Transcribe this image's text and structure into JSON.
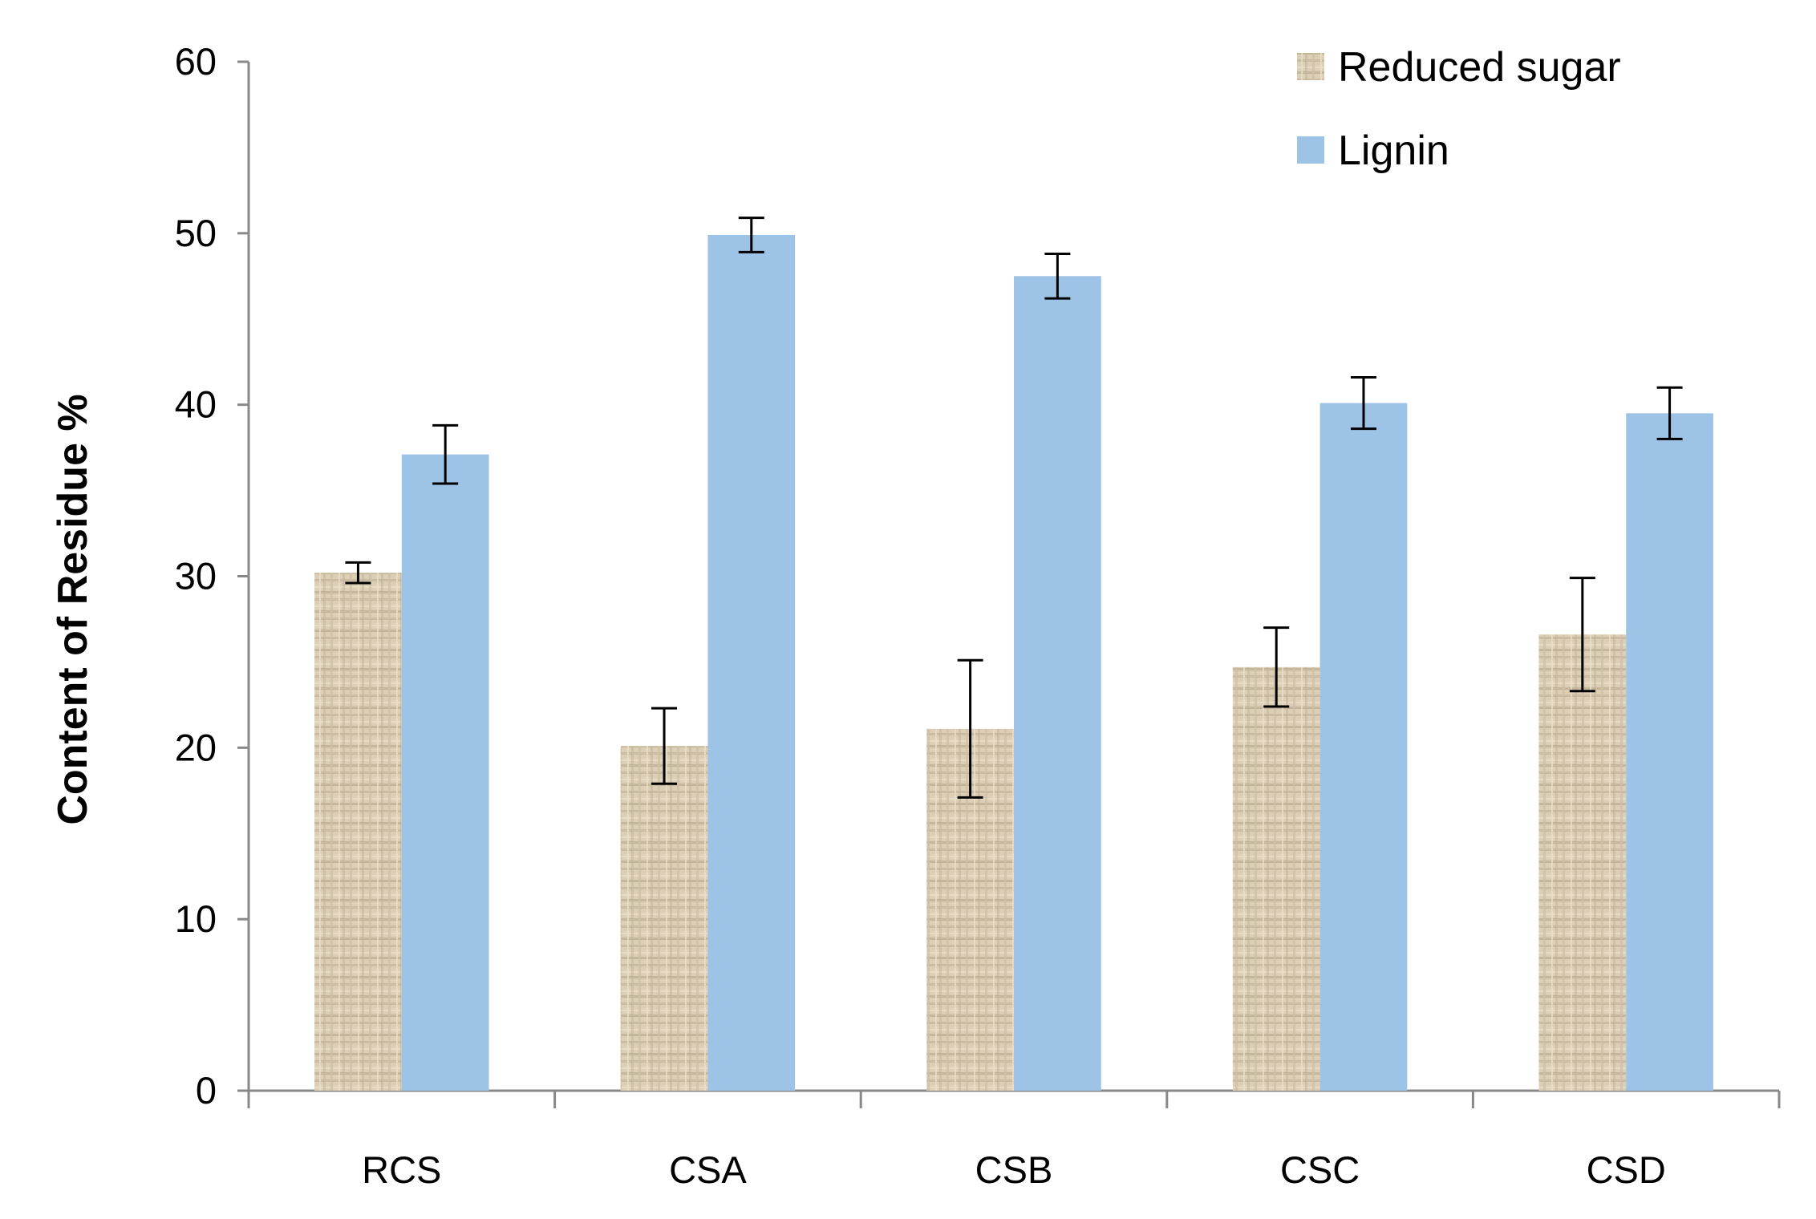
{
  "chart_data": {
    "type": "bar",
    "title": "",
    "xlabel": "",
    "ylabel": "Content of Residue  %",
    "categories": [
      "RCS",
      "CSA",
      "CSB",
      "CSC",
      "CSD"
    ],
    "ylim": [
      0,
      60
    ],
    "yticks": [
      0,
      10,
      20,
      30,
      40,
      50,
      60
    ],
    "grid": false,
    "legend_position": "top-right",
    "series": [
      {
        "name": "Reduced sugar",
        "color": "#d8ccb2",
        "pattern": "woven-texture",
        "values": [
          30.2,
          20.1,
          21.1,
          24.7,
          26.6
        ],
        "errors": [
          0.6,
          2.2,
          4.0,
          2.3,
          3.3
        ]
      },
      {
        "name": "Lignin",
        "color": "#9dc3e6",
        "values": [
          37.1,
          49.9,
          47.5,
          40.1,
          39.5
        ],
        "errors": [
          1.7,
          1.0,
          1.3,
          1.5,
          1.5
        ]
      }
    ]
  }
}
